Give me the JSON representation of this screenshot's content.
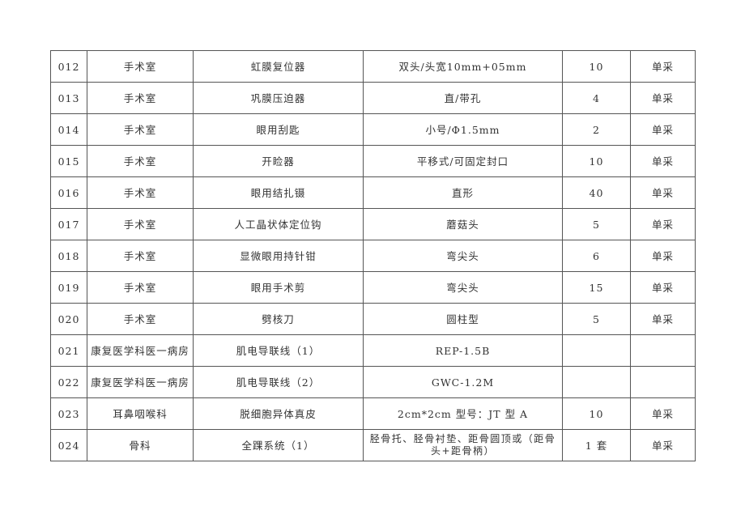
{
  "rows": [
    {
      "no": "012",
      "dept": "手术室",
      "name": "虹膜复位器",
      "spec": "双头/头宽10mm+05mm",
      "qty": "10",
      "method": "单采"
    },
    {
      "no": "013",
      "dept": "手术室",
      "name": "巩膜压迫器",
      "spec": "直/带孔",
      "qty": "4",
      "method": "单采"
    },
    {
      "no": "014",
      "dept": "手术室",
      "name": "眼用刮匙",
      "spec": "小号/Φ1.5mm",
      "qty": "2",
      "method": "单采"
    },
    {
      "no": "015",
      "dept": "手术室",
      "name": "开睑器",
      "spec": "平移式/可固定封口",
      "qty": "10",
      "method": "单采"
    },
    {
      "no": "016",
      "dept": "手术室",
      "name": "眼用结扎镊",
      "spec": "直形",
      "qty": "40",
      "method": "单采"
    },
    {
      "no": "017",
      "dept": "手术室",
      "name": "人工晶状体定位钩",
      "spec": "蘑菇头",
      "qty": "5",
      "method": "单采"
    },
    {
      "no": "018",
      "dept": "手术室",
      "name": "显微眼用持针钳",
      "spec": "弯尖头",
      "qty": "6",
      "method": "单采"
    },
    {
      "no": "019",
      "dept": "手术室",
      "name": "眼用手术剪",
      "spec": "弯尖头",
      "qty": "15",
      "method": "单采"
    },
    {
      "no": "020",
      "dept": "手术室",
      "name": "劈核刀",
      "spec": "圆柱型",
      "qty": "5",
      "method": "单采"
    },
    {
      "no": "021",
      "dept": "康复医学科医一病房",
      "name": "肌电导联线（1）",
      "spec": "REP-1.5B",
      "qty": "",
      "method": ""
    },
    {
      "no": "022",
      "dept": "康复医学科医一病房",
      "name": "肌电导联线（2）",
      "spec": "GWC-1.2M",
      "qty": "",
      "method": ""
    },
    {
      "no": "023",
      "dept": "耳鼻咽喉科",
      "name": "脱细胞异体真皮",
      "spec": "2cm*2cm 型号：JT 型 A",
      "qty": "10",
      "method": "单采"
    },
    {
      "no": "024",
      "dept": "骨科",
      "name": "全踝系统（1）",
      "spec": "胫骨托、胫骨衬垫、距骨圆顶或（距骨头+距骨柄）",
      "qty": "1 套",
      "method": "单采"
    }
  ]
}
